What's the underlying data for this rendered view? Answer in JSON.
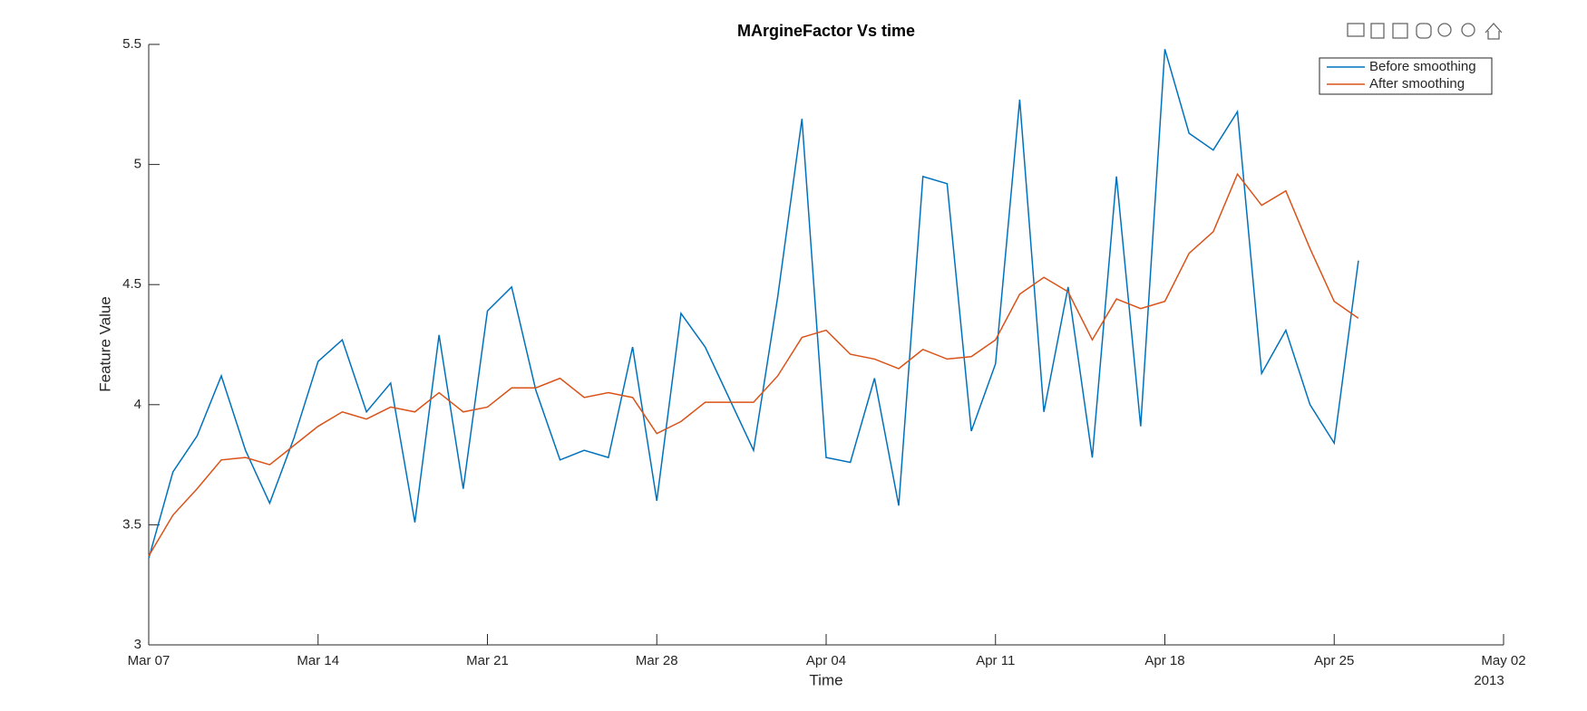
{
  "chart_data": {
    "type": "line",
    "title": "MArgineFactor Vs time",
    "x_label": "Time",
    "y_label": "Feature Value",
    "x_secondary_label": "2013",
    "x": [
      "2013-03-07",
      "2013-03-08",
      "2013-03-09",
      "2013-03-10",
      "2013-03-11",
      "2013-03-12",
      "2013-03-13",
      "2013-03-14",
      "2013-03-15",
      "2013-03-16",
      "2013-03-17",
      "2013-03-18",
      "2013-03-19",
      "2013-03-20",
      "2013-03-21",
      "2013-03-22",
      "2013-03-23",
      "2013-03-24",
      "2013-03-25",
      "2013-03-26",
      "2013-03-27",
      "2013-03-28",
      "2013-03-29",
      "2013-03-30",
      "2013-04-01",
      "2013-04-02",
      "2013-04-03",
      "2013-04-04",
      "2013-04-05",
      "2013-04-06",
      "2013-04-07",
      "2013-04-08",
      "2013-04-09",
      "2013-04-10",
      "2013-04-11",
      "2013-04-12",
      "2013-04-13",
      "2013-04-14",
      "2013-04-15",
      "2013-04-16",
      "2013-04-17",
      "2013-04-18",
      "2013-04-19",
      "2013-04-20",
      "2013-04-21",
      "2013-04-22",
      "2013-04-23",
      "2013-04-24",
      "2013-04-25",
      "2013-04-26"
    ],
    "series": [
      {
        "name": "Before smoothing",
        "color": "#0072bd",
        "values": [
          3.36,
          3.72,
          3.87,
          4.12,
          3.81,
          3.59,
          3.86,
          4.18,
          4.27,
          3.97,
          4.09,
          3.51,
          4.29,
          3.65,
          4.39,
          4.49,
          4.06,
          3.77,
          3.81,
          3.78,
          4.24,
          3.6,
          4.38,
          4.24,
          3.81,
          4.45,
          5.19,
          3.78,
          3.76,
          4.11,
          3.58,
          4.95,
          4.92,
          3.89,
          4.17,
          5.27,
          3.97,
          4.49,
          3.78,
          4.95,
          3.91,
          5.48,
          5.13,
          5.06,
          5.22,
          4.13,
          4.31,
          4.0,
          3.84,
          4.6
        ]
      },
      {
        "name": "After smoothing",
        "color": "#d95319",
        "values": [
          3.37,
          3.54,
          3.65,
          3.77,
          3.78,
          3.75,
          3.83,
          3.91,
          3.97,
          3.94,
          3.99,
          3.97,
          4.05,
          3.97,
          3.99,
          4.07,
          4.07,
          4.11,
          4.03,
          4.05,
          4.03,
          3.88,
          3.93,
          4.01,
          4.01,
          4.12,
          4.28,
          4.31,
          4.21,
          4.19,
          4.15,
          4.23,
          4.19,
          4.2,
          4.27,
          4.46,
          4.53,
          4.47,
          4.27,
          4.44,
          4.4,
          4.43,
          4.63,
          4.72,
          4.96,
          4.83,
          4.89,
          4.65,
          4.43,
          4.36
        ]
      }
    ],
    "xlim": [
      "2013-03-07",
      "2013-05-02"
    ],
    "xticks": [
      {
        "value": "2013-03-07",
        "label": "Mar 07"
      },
      {
        "value": "2013-03-14",
        "label": "Mar 14"
      },
      {
        "value": "2013-03-21",
        "label": "Mar 21"
      },
      {
        "value": "2013-03-28",
        "label": "Mar 28"
      },
      {
        "value": "2013-04-04",
        "label": "Apr 04"
      },
      {
        "value": "2013-04-11",
        "label": "Apr 11"
      },
      {
        "value": "2013-04-18",
        "label": "Apr 18"
      },
      {
        "value": "2013-04-25",
        "label": "Apr 25"
      },
      {
        "value": "2013-05-02",
        "label": "May 02"
      }
    ],
    "ylim": [
      3,
      5.5
    ],
    "yticks": [
      3,
      3.5,
      4,
      4.5,
      5,
      5.5
    ],
    "grid": false,
    "legend": "top-right"
  }
}
